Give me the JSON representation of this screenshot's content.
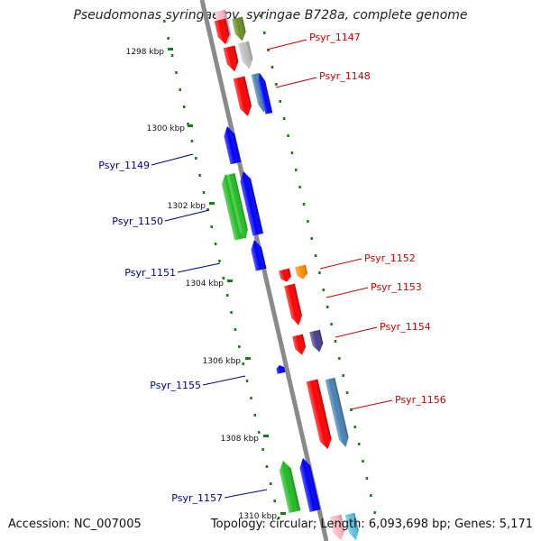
{
  "title": "Pseudomonas syringae pv. syringae B728a, complete genome",
  "footer": {
    "accession": "Accession: NC_007005",
    "stats": "Topology: circular; Length: 6,093,698 bp; Genes: 5,171"
  },
  "ruler": [
    {
      "label": "1298 kbp"
    },
    {
      "label": "1300 kbp"
    },
    {
      "label": "1302 kbp"
    },
    {
      "label": "1304 kbp"
    },
    {
      "label": "1306 kbp"
    },
    {
      "label": "1308 kbp"
    },
    {
      "label": "1310 kbp"
    }
  ],
  "colors": {
    "backbone": "#8a8a8a",
    "forward_label": "#cc0000",
    "reverse_label": "#00008b",
    "red": "#ff0000",
    "blue": "#0000ff",
    "green": "#22bb22",
    "olive": "#6b8e23",
    "gray": "#bdbdbd",
    "steel": "#4682b4",
    "orange": "#ff8c00",
    "purple": "#483d8b",
    "pink": "#ffb6c1",
    "cyan": "#5bc0de",
    "ruler": "#1a7a1a"
  },
  "labels": [
    {
      "text": "Psyr_1147",
      "strand": "forward"
    },
    {
      "text": "Psyr_1148",
      "strand": "forward"
    },
    {
      "text": "Psyr_1149",
      "strand": "reverse"
    },
    {
      "text": "Psyr_1150",
      "strand": "reverse"
    },
    {
      "text": "Psyr_1151",
      "strand": "reverse"
    },
    {
      "text": "Psyr_1152",
      "strand": "forward"
    },
    {
      "text": "Psyr_1153",
      "strand": "forward"
    },
    {
      "text": "Psyr_1154",
      "strand": "forward"
    },
    {
      "text": "Psyr_1155",
      "strand": "reverse"
    },
    {
      "text": "Psyr_1156",
      "strand": "forward"
    },
    {
      "text": "Psyr_1157",
      "strand": "reverse"
    }
  ]
}
